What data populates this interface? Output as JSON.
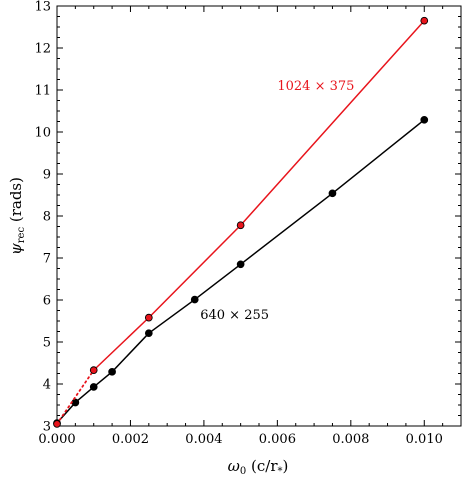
{
  "chart_data": {
    "type": "line",
    "xlabel_parts": {
      "sym": "ω",
      "sub": "0",
      "unit_open": " (c/r",
      "unit_sub": "*",
      "unit_close": ")"
    },
    "ylabel_parts": {
      "sym": "ψ",
      "sub": "rec",
      "unit": " (rads)"
    },
    "xlim": [
      0.0,
      0.011
    ],
    "ylim": [
      3,
      13
    ],
    "xticks": [
      0.0,
      0.002,
      0.004,
      0.006,
      0.008,
      0.01
    ],
    "xtick_labels": [
      "0.000",
      "0.002",
      "0.004",
      "0.006",
      "0.008",
      "0.010"
    ],
    "yticks": [
      3,
      4,
      5,
      6,
      7,
      8,
      9,
      10,
      11,
      12,
      13
    ],
    "ytick_labels": [
      "3",
      "4",
      "5",
      "6",
      "7",
      "8",
      "9",
      "10",
      "11",
      "12",
      "13"
    ],
    "grid": false,
    "series": [
      {
        "color": "#000000",
        "marker_fill": "#000000",
        "x": [
          0.0,
          0.0005,
          0.001,
          0.0015,
          0.0025,
          0.00375,
          0.005,
          0.0075,
          0.01
        ],
        "y": [
          3.07,
          3.56,
          3.93,
          4.29,
          5.21,
          6.01,
          6.85,
          8.54,
          10.29
        ]
      },
      {
        "color": "#e8141c",
        "marker_fill": "#e8141c",
        "x": [
          0.0,
          0.001,
          0.0025,
          0.005,
          0.01
        ],
        "y": [
          3.05,
          4.33,
          5.58,
          7.78,
          12.65
        ],
        "dotted_segments": [
          0
        ]
      }
    ],
    "annotations": [
      {
        "text": "1024 × 375",
        "x": 0.006,
        "y": 11.0,
        "color": "#e8141c"
      },
      {
        "text": "640 × 255",
        "x": 0.0039,
        "y": 5.55,
        "color": "#000000"
      }
    ]
  }
}
